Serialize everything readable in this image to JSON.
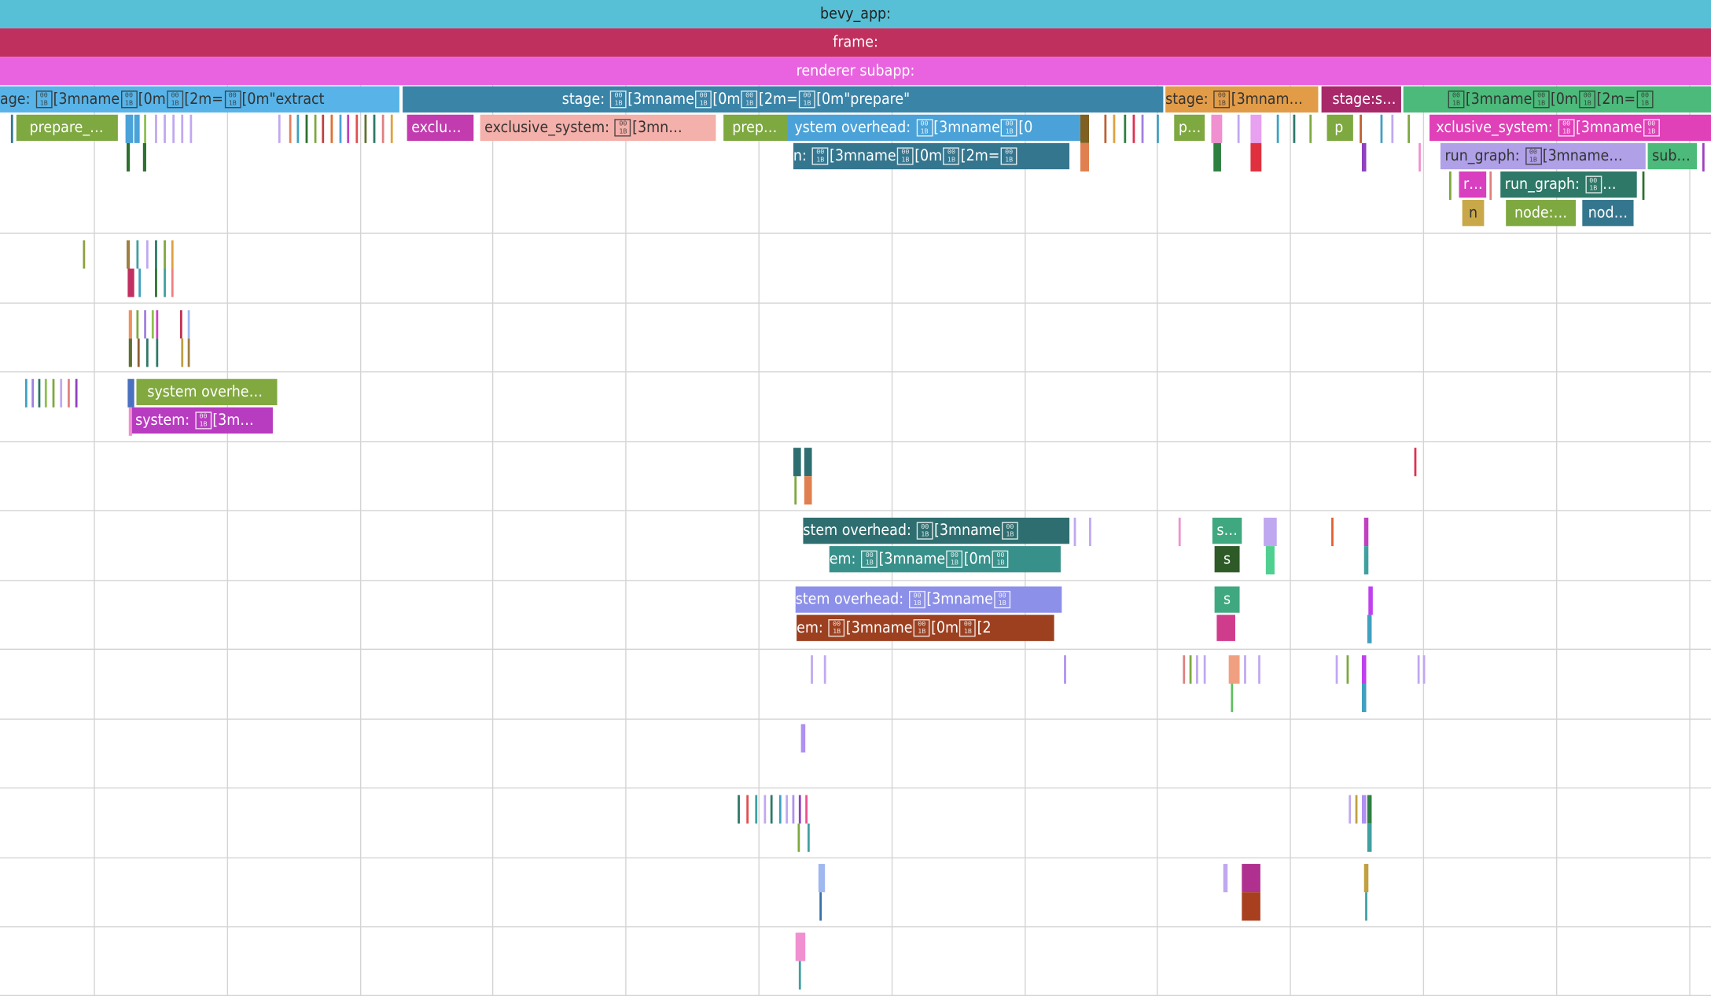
{
  "tracks": {
    "bevy_app": {
      "label": "bevy_app:",
      "color": "#57bfd6"
    },
    "frame": {
      "label": "frame:",
      "color": "#c0305e"
    },
    "renderer": {
      "label": "renderer subapp:",
      "color": "#e963e0"
    }
  },
  "spans": {
    "stage_extract": "age: \u001b[3mname\u001b[0m\u001b[2m=\u001b[0m\"extract",
    "stage_prepare": "stage: \u001b[3mname\u001b[0m\u001b[2m=\u001b[0m\"prepare\"",
    "stage_3": "stage: \u001b[3mnam…",
    "stage_4": "stage:stage:",
    "stage_5": "\u001b[3mname\u001b[0m\u001b[2m=\u001b",
    "prepare_1": "prepare_…",
    "exclu": "exclu…",
    "exclusive_system_1": "exclusive_system: \u001b[3mn…",
    "prep": "prep…",
    "system_overhead_1": "ystem overhead: \u001b[3mname\u001b[0",
    "p_1": "p…",
    "p_2": "p",
    "exclusive_system_2": "xclusive_system: \u001b[3mname\u001b",
    "n_row": "n: \u001b[3mname\u001b[0m\u001b[2m=\u001b",
    "run_graph_1": "run_graph: \u001b[3mname…",
    "sub": "sub…",
    "r": "r…",
    "run_graph_2": "run_graph: \u001b…",
    "n": "n",
    "node_1": "node:…",
    "node_2": "nod…",
    "system_overhead_2": "system overhe…",
    "system_1": "system: \u001b[3m…",
    "system_overhead_3": "stem overhead: \u001b[3mname\u001b",
    "em_1": "em: \u001b[3mname\u001b[0m\u001b",
    "s_1": "s…",
    "s_2": "s",
    "system_overhead_4": "stem overhead: \u001b[3mname\u001b",
    "em_2": "em: \u001b[3mname\u001b[0m\u001b[2",
    "s_3": "s"
  }
}
